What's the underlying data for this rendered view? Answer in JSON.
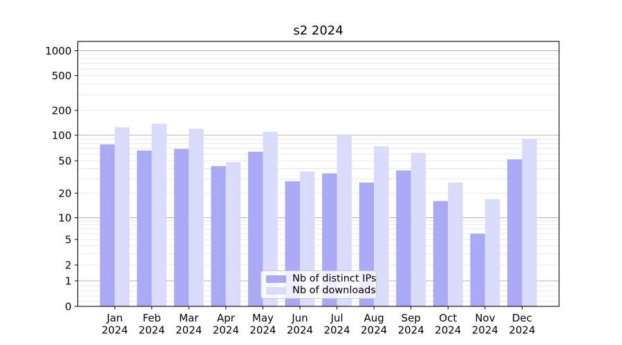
{
  "chart_data": {
    "type": "bar",
    "title": "s2 2024",
    "categories": [
      "Jan 2024",
      "Feb 2024",
      "Mar 2024",
      "Apr 2024",
      "May 2024",
      "Jun 2024",
      "Jul 2024",
      "Aug 2024",
      "Sep 2024",
      "Oct 2024",
      "Nov 2024",
      "Dec 2024"
    ],
    "series": [
      {
        "name": "Nb of distinct IPs",
        "color": "#a9a9f6",
        "values": [
          78,
          66,
          69,
          43,
          64,
          28,
          35,
          27,
          38,
          16,
          6,
          52
        ]
      },
      {
        "name": "Nb of downloads",
        "color": "#dadafb",
        "values": [
          125,
          138,
          120,
          48,
          110,
          37,
          100,
          74,
          62,
          27,
          17,
          91
        ]
      }
    ],
    "xlabel": "",
    "ylabel": "",
    "yscale": "symlog",
    "ylim": [
      0,
      1300
    ],
    "y_ticks": [
      0,
      1,
      2,
      5,
      10,
      20,
      50,
      100,
      200,
      500,
      1000
    ],
    "y_major_ticks": [
      1,
      10,
      100,
      1000
    ],
    "grid": true,
    "legend_position": "lower center",
    "colors": {
      "major_grid": "#b0b0b0",
      "minor_grid": "#e7e7e7",
      "spine": "#000000",
      "text": "#000000",
      "background": "#ffffff"
    }
  }
}
